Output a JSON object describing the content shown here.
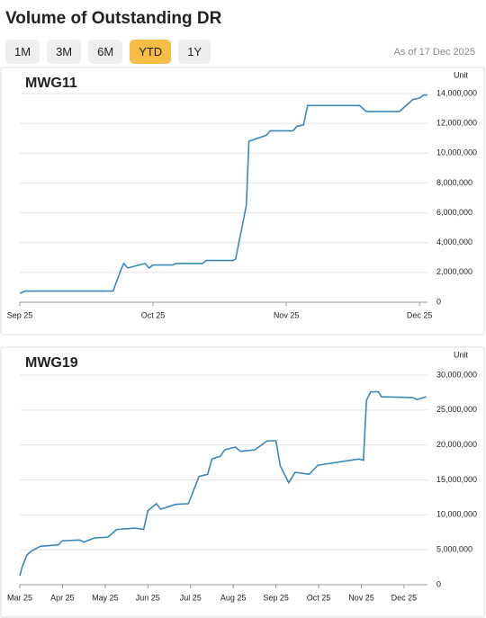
{
  "title": "Volume of Outstanding DR",
  "buttons": [
    "1M",
    "3M",
    "6M",
    "YTD",
    "1Y"
  ],
  "active_button": 3,
  "as_of": "As of 17 Dec 2025",
  "chart_data": [
    {
      "type": "line",
      "title": "MWG11",
      "y_label": "Unit",
      "color": "#3b87ba",
      "grid": true,
      "x": [
        9.0,
        9.04,
        9.7,
        9.76,
        9.78,
        9.81,
        9.94,
        9.97,
        10.0,
        10.15,
        10.17,
        10.37,
        10.4,
        10.6,
        10.62,
        10.7,
        10.72,
        10.85,
        10.88,
        11.05,
        11.08,
        11.13,
        11.16,
        11.55,
        11.6,
        11.85,
        11.95,
        12.0,
        12.03,
        12.06
      ],
      "values": [
        600000,
        750000,
        750000,
        2200000,
        2600000,
        2300000,
        2600000,
        2300000,
        2500000,
        2500000,
        2600000,
        2600000,
        2800000,
        2800000,
        2900000,
        6500000,
        10800000,
        11200000,
        11500000,
        11500000,
        11800000,
        11900000,
        13200000,
        13200000,
        12800000,
        12800000,
        13600000,
        13700000,
        13900000,
        13900000
      ],
      "xlim": [
        9,
        12.06
      ],
      "xticks": [
        {
          "value": 9,
          "label": "Sep 25"
        },
        {
          "value": 10,
          "label": "Oct 25"
        },
        {
          "value": 11,
          "label": "Nov 25"
        },
        {
          "value": 12,
          "label": "Dec 25"
        }
      ],
      "ylim": [
        0,
        14000000
      ],
      "yticks": [
        0,
        {
          "value": 2000000,
          "label": "2,000,000"
        },
        {
          "value": 4000000,
          "label": "4,000,000"
        },
        {
          "value": 6000000,
          "label": "6,000,000"
        },
        {
          "value": 8000000,
          "label": "8,000,000"
        },
        {
          "value": 10000000,
          "label": "10,000,000"
        },
        {
          "value": 12000000,
          "label": "12,000,000"
        },
        {
          "value": 14000000,
          "label": "14,000,000"
        }
      ]
    },
    {
      "type": "line",
      "title": "MWG19",
      "y_label": "Unit",
      "color": "#3b87ba",
      "grid": true,
      "x": [
        3.0,
        3.06,
        3.17,
        3.27,
        3.48,
        3.9,
        4.0,
        4.4,
        4.5,
        4.75,
        5.06,
        5.27,
        5.7,
        5.9,
        6.0,
        6.2,
        6.3,
        6.65,
        6.95,
        7.07,
        7.2,
        7.4,
        7.5,
        7.7,
        7.8,
        8.05,
        8.17,
        8.5,
        8.8,
        9.0,
        9.1,
        9.3,
        9.45,
        9.78,
        9.98,
        10.95,
        11.05,
        11.12,
        11.22,
        11.4,
        11.47,
        12.2,
        12.3,
        12.52
      ],
      "values": [
        1300000,
        2600000,
        4300000,
        4800000,
        5500000,
        5700000,
        6300000,
        6400000,
        6100000,
        6700000,
        6800000,
        7900000,
        8100000,
        7900000,
        10600000,
        11600000,
        10800000,
        11500000,
        11600000,
        13500000,
        15500000,
        15800000,
        18000000,
        18400000,
        19300000,
        19700000,
        19100000,
        19300000,
        20600000,
        20600000,
        17000000,
        14600000,
        16100000,
        15800000,
        17100000,
        18000000,
        17800000,
        26400000,
        27600000,
        27600000,
        26900000,
        26800000,
        26500000,
        26900000
      ],
      "xlim": [
        3,
        12.55
      ],
      "xticks": [
        {
          "value": 3,
          "label": "Mar 25"
        },
        {
          "value": 4,
          "label": "Apr 25"
        },
        {
          "value": 5,
          "label": "May 25"
        },
        {
          "value": 6,
          "label": "Jun 25"
        },
        {
          "value": 7,
          "label": "Jul 25"
        },
        {
          "value": 8,
          "label": "Aug 25"
        },
        {
          "value": 9,
          "label": "Sep 25"
        },
        {
          "value": 10,
          "label": "Oct 25"
        },
        {
          "value": 11,
          "label": "Nov 25"
        },
        {
          "value": 12,
          "label": "Dec 25"
        }
      ],
      "ylim": [
        0,
        30000000
      ],
      "yticks": [
        0,
        {
          "value": 5000000,
          "label": "5,000,000"
        },
        {
          "value": 10000000,
          "label": "10,000,000"
        },
        {
          "value": 15000000,
          "label": "15,000,000"
        },
        {
          "value": 20000000,
          "label": "20,000,000"
        },
        {
          "value": 25000000,
          "label": "25,000,000"
        },
        {
          "value": 30000000,
          "label": "30,000,000"
        }
      ]
    }
  ]
}
